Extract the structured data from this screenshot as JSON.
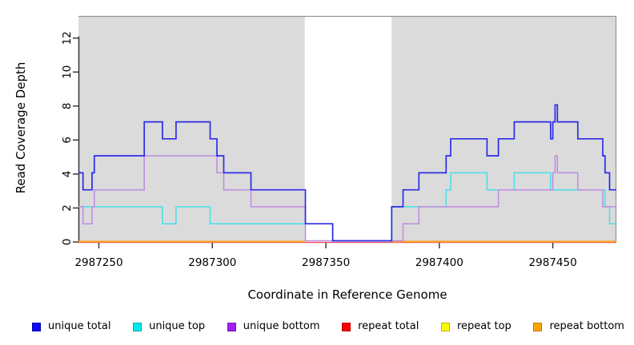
{
  "chart_data": {
    "type": "line",
    "subtype": "step-coverage",
    "title": "",
    "xlabel": "Coordinate in Reference Genome",
    "ylabel": "Read Coverage Depth",
    "xlim": [
      2987241,
      2987478
    ],
    "ylim": [
      0,
      13.3
    ],
    "x_ticks": [
      2987250,
      2987300,
      2987350,
      2987400,
      2987450
    ],
    "y_ticks": [
      0,
      2,
      4,
      6,
      8,
      10,
      12
    ],
    "grid": false,
    "legend_position": "bottom",
    "background_color": "#ffffff",
    "shaded_region_color": "#DBDBDB",
    "axis_color": "#2E2E2E",
    "box_color": "#969696",
    "shaded_regions": [
      {
        "x0": 2987241,
        "x1": 2987340.7
      },
      {
        "x0": 2987379,
        "x1": 2987478
      }
    ],
    "series": [
      {
        "name": "unique total",
        "slug": "unique-total",
        "color": "#2B2BE8",
        "width": 1.7,
        "z": 6,
        "y_offset": -1.5,
        "paths": [
          {
            "pts": [
              [
                2987241,
                4
              ],
              [
                2987243,
                3
              ],
              [
                2987247,
                4
              ],
              [
                2987248,
                5
              ],
              [
                2987270,
                7
              ],
              [
                2987278,
                6
              ],
              [
                2987284,
                7
              ],
              [
                2987299,
                6
              ],
              [
                2987302,
                5
              ],
              [
                2987305,
                4
              ],
              [
                2987317,
                3
              ],
              [
                2987341,
                1
              ],
              [
                2987353,
                0
              ],
              [
                2987379,
                2
              ],
              [
                2987384,
                3
              ],
              [
                2987391,
                4
              ],
              [
                2987403,
                5
              ],
              [
                2987405,
                6
              ],
              [
                2987421,
                5
              ],
              [
                2987426,
                6
              ],
              [
                2987433,
                7
              ],
              [
                2987449,
                6
              ],
              [
                2987450,
                7
              ],
              [
                2987451,
                8
              ],
              [
                2987452,
                7
              ],
              [
                2987461,
                6
              ],
              [
                2987472,
                5
              ],
              [
                2987473,
                4
              ],
              [
                2987475,
                3
              ]
            ],
            "end": 2987478
          }
        ]
      },
      {
        "name": "unique top",
        "slug": "unique-top",
        "color": "#45E0E8",
        "width": 1.5,
        "z": 4,
        "y_offset": -1.5,
        "paths": [
          {
            "pts": [
              [
                2987241,
                2
              ],
              [
                2987278,
                1
              ],
              [
                2987284,
                2
              ],
              [
                2987299,
                1
              ],
              [
                2987353,
                0
              ],
              [
                2987379,
                2
              ],
              [
                2987403,
                3
              ],
              [
                2987405,
                4
              ],
              [
                2987421,
                3
              ],
              [
                2987433,
                4
              ],
              [
                2987449,
                3
              ],
              [
                2987473,
                2
              ],
              [
                2987475,
                1
              ]
            ],
            "end": 2987478
          }
        ]
      },
      {
        "name": "unique bottom",
        "slug": "unique-bottom",
        "color": "#BE8BE2",
        "width": 1.5,
        "z": 5,
        "y_offset": -1.5,
        "paths": [
          {
            "pts": [
              [
                2987241,
                2
              ],
              [
                2987243,
                1
              ],
              [
                2987247,
                2
              ],
              [
                2987248,
                3
              ],
              [
                2987270,
                5
              ],
              [
                2987302,
                4
              ],
              [
                2987305,
                3
              ],
              [
                2987317,
                2
              ],
              [
                2987341,
                0
              ],
              [
                2987384,
                1
              ],
              [
                2987391,
                2
              ],
              [
                2987426,
                3
              ],
              [
                2987450,
                4
              ],
              [
                2987451,
                5
              ],
              [
                2987452,
                4
              ],
              [
                2987461,
                3
              ],
              [
                2987472,
                2
              ]
            ],
            "end": 2987478
          }
        ]
      },
      {
        "name": "repeat total",
        "slug": "repeat-total",
        "color": "#E25560",
        "width": 1.4,
        "z": 1,
        "y_offset": 0.6,
        "paths": [
          {
            "pts": [
              [
                2987241,
                0
              ]
            ],
            "end": 2987478
          }
        ]
      },
      {
        "name": "repeat top",
        "slug": "repeat-top",
        "color": "#F2F20A",
        "width": 1.6,
        "z": 2,
        "y_offset": -0.5,
        "paths": [
          {
            "pts": [
              [
                2987241,
                0
              ]
            ],
            "end": 2987341
          },
          {
            "pts": [
              [
                2987379,
                0
              ]
            ],
            "end": 2987478
          }
        ]
      },
      {
        "name": "repeat bottom",
        "slug": "repeat-bottom",
        "color": "#FF9D15",
        "width": 1.9,
        "z": 3,
        "y_offset": -0.5,
        "paths": [
          {
            "pts": [
              [
                2987241,
                0
              ]
            ],
            "end": 2987341
          },
          {
            "pts": [
              [
                2987379,
                0
              ]
            ],
            "end": 2987478
          }
        ]
      }
    ],
    "legend": [
      {
        "label": "unique total",
        "fill": "#0D0DF2",
        "border": "#0000B4"
      },
      {
        "label": "unique top",
        "fill": "#00E8F0",
        "border": "#00A8B0"
      },
      {
        "label": "unique bottom",
        "fill": "#A020F0",
        "border": "#7716B4"
      },
      {
        "label": "repeat total",
        "fill": "#FB0000",
        "border": "#B80000"
      },
      {
        "label": "repeat top",
        "fill": "#FCFC00",
        "border": "#B8B800"
      },
      {
        "label": "repeat bottom",
        "fill": "#FFA408",
        "border": "#BF7B00"
      }
    ]
  }
}
